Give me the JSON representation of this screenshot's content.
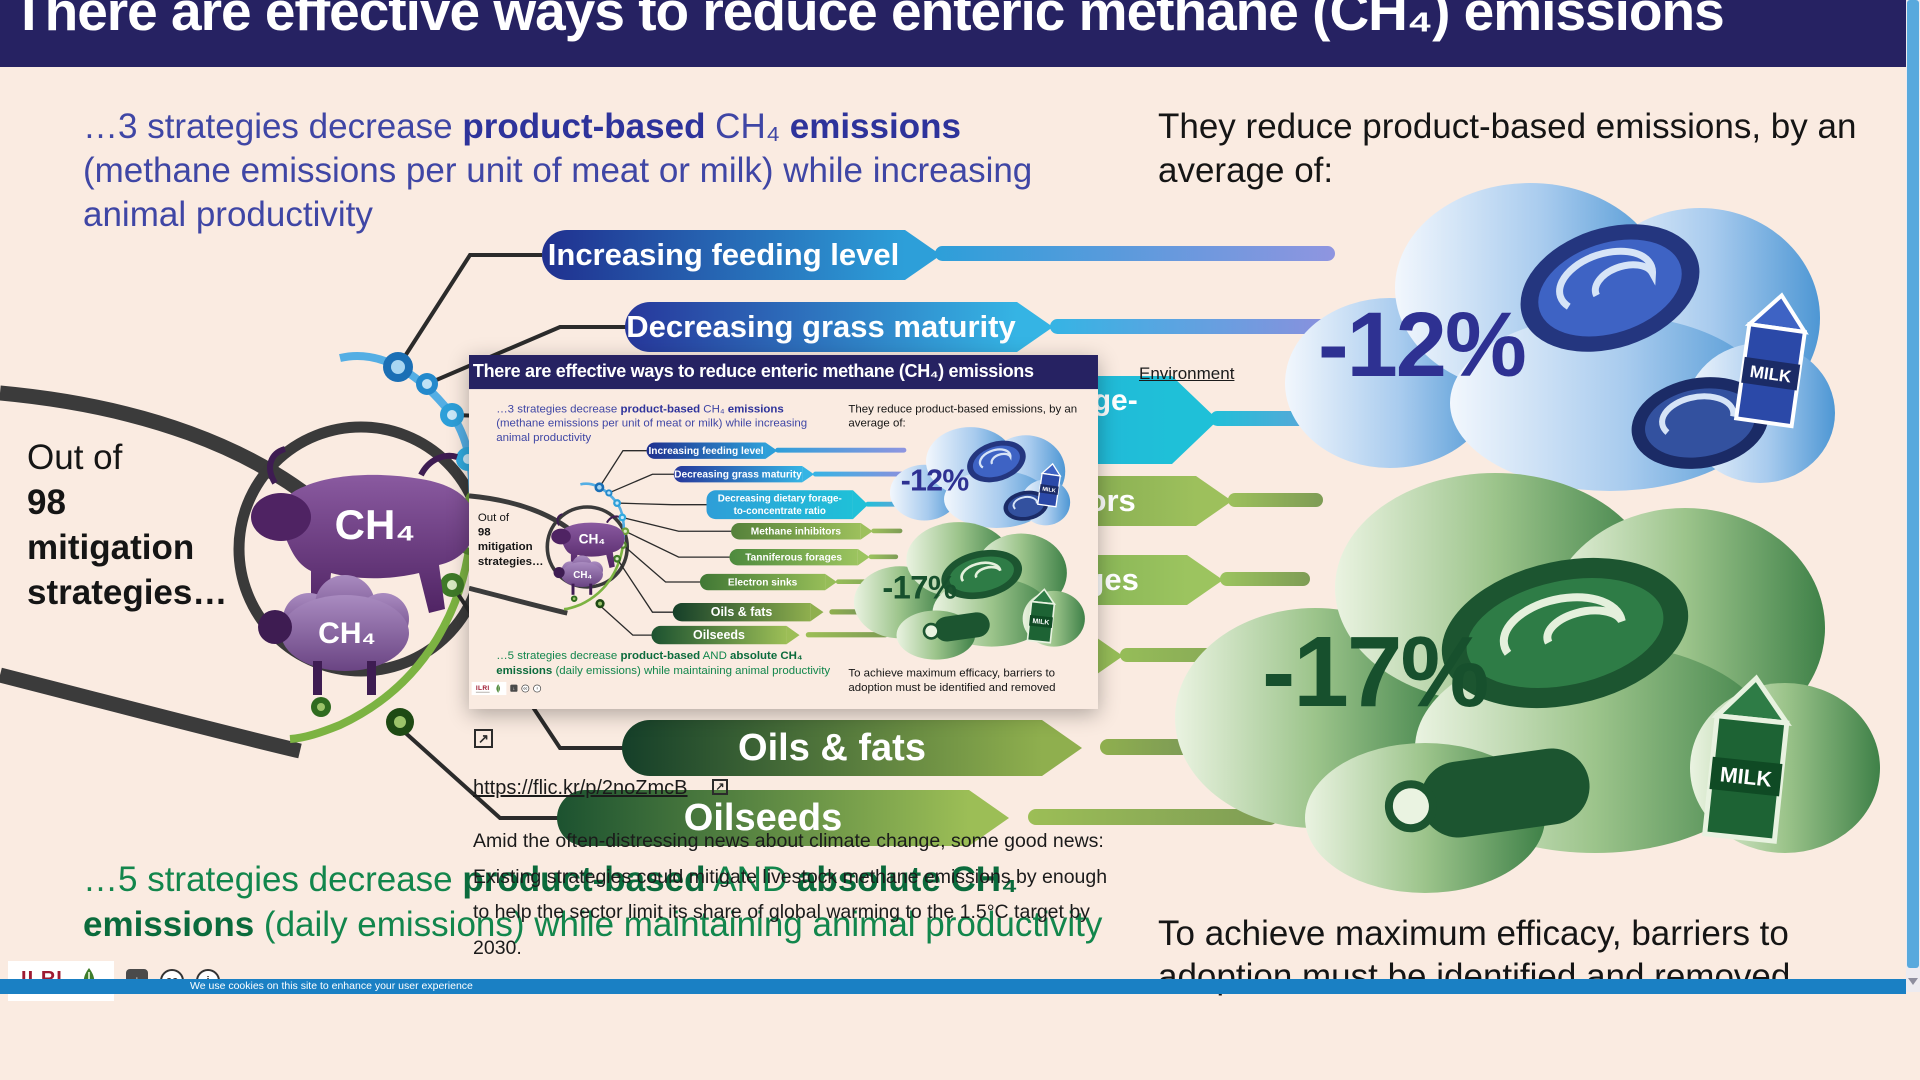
{
  "header": {
    "title": "There are effective ways to reduce enteric methane (CH₄) emissions"
  },
  "infographic": {
    "intro_product_segments": [
      {
        "t": "…3 strategies decrease "
      },
      {
        "t": "product-based",
        "b": true
      },
      {
        "t": " CH₄ "
      },
      {
        "t": "emissions",
        "b": true
      },
      {
        "t": "\n(methane emissions per unit of meat or milk) while increasing\nanimal productivity"
      }
    ],
    "intro_reduce": "They reduce product-based emissions, by an\naverage of:",
    "out_of_segments": [
      {
        "t": "Out of\n"
      },
      {
        "t": "98\nmitigation\nstrategies…",
        "b": true
      }
    ],
    "strategies": [
      "Increasing feeding level",
      "Decreasing grass maturity",
      "Decreasing dietary forage-\nto-concentrate ratio",
      "Methane inhibitors",
      "Tanniferous forages",
      "Electron sinks",
      "Oils & fats",
      "Oilseeds"
    ],
    "reduction_product": "-12%",
    "reduction_absolute": "-17%",
    "milk_label": "MILK",
    "ch4_label": "CH₄",
    "five_segments": [
      {
        "t": "…5 strategies decrease "
      },
      {
        "t": "product-based",
        "b": true
      },
      {
        "t": " AND "
      },
      {
        "t": "absolute CH₄",
        "b": true
      },
      {
        "t": "\n"
      },
      {
        "t": "emissions",
        "b": true
      },
      {
        "t": " (daily emissions) while maintaining animal productivity"
      }
    ],
    "barriers": "To achieve maximum efficacy, barriers to\nadoption must be identified and removed",
    "credits_logo": "ILRI"
  },
  "overlay": {
    "category_link": "Environment",
    "image_link": "https://flic.kr/p/2noZmcB",
    "caption": "Amid the often-distressing news about climate change, some good news:\nExisting strategies could mitigate livestock methane emissions by enough\nto help the sector limit its share of global warming to the 1.5°C target by\n2030."
  },
  "cookie_notice": "We use cookies on this site to enhance your user experience",
  "icons": {
    "external_link": "↗",
    "download": "↓",
    "cc": "cc",
    "info": "i"
  },
  "colors": {
    "header_navy": "#262262",
    "beige": "#FAEBE1",
    "indigo_text": "#3F46A5",
    "green_text": "#12864C",
    "reduction_blue": "#2E3192",
    "reduction_green": "#17502D",
    "cookie_blue": "#1A80C4"
  }
}
